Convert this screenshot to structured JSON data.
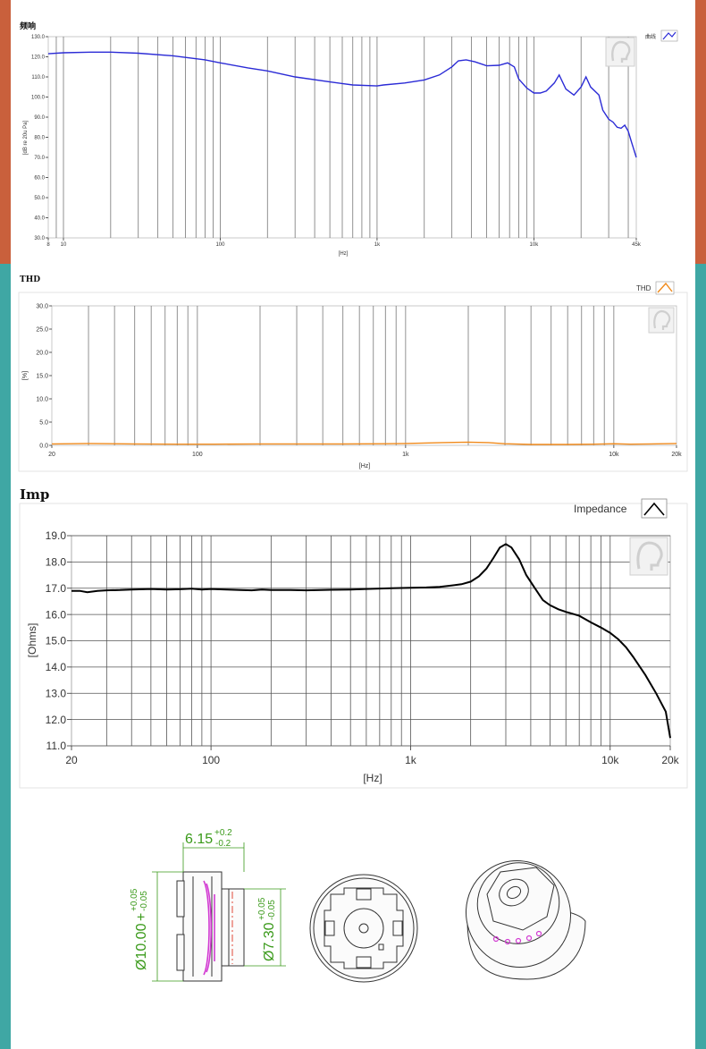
{
  "colors": {
    "left_band_top": "#c9603c",
    "band_bottom": "#3fa7a4",
    "fr_line": "#2b2bd6",
    "thd_line": "#f08a1c",
    "imp_line": "#000000",
    "dimension": "#3a9a1a",
    "coil": "#d23ad2"
  },
  "icons": [
    "person-logo-icon",
    "legend-swatch-icon"
  ],
  "chart_data": [
    {
      "type": "line",
      "title": "频响",
      "xlabel": "[Hz]",
      "ylabel": "[dB re 20u Pa]",
      "xscale": "log",
      "xlim": [
        8,
        45000
      ],
      "ylim": [
        30,
        130
      ],
      "xtick_labels": [
        "8",
        "10",
        "100",
        "1k",
        "10k",
        "45k"
      ],
      "xtick_values": [
        8,
        10,
        100,
        1000,
        10000,
        45000
      ],
      "ytick_values": [
        30,
        40,
        50,
        60,
        70,
        80,
        90,
        100,
        110,
        120,
        130
      ],
      "ytick_labels": [
        "30.0",
        "40.0",
        "50.0",
        "60.0",
        "70.0",
        "80.0",
        "90.0",
        "100.0",
        "110.0",
        "120.0",
        "130.0"
      ],
      "grid": "vertical",
      "legend": "top-right",
      "series": [
        {
          "name": "曲线",
          "points": [
            [
              8,
              121.5
            ],
            [
              10,
              122
            ],
            [
              15,
              122.3
            ],
            [
              20,
              122.3
            ],
            [
              30,
              121.8
            ],
            [
              50,
              120.5
            ],
            [
              80,
              118.5
            ],
            [
              100,
              117
            ],
            [
              150,
              114.5
            ],
            [
              200,
              113
            ],
            [
              300,
              110
            ],
            [
              500,
              107.5
            ],
            [
              700,
              106
            ],
            [
              1000,
              105.5
            ],
            [
              1100,
              106
            ],
            [
              1500,
              107
            ],
            [
              2000,
              108.5
            ],
            [
              2500,
              111
            ],
            [
              3000,
              115
            ],
            [
              3300,
              118
            ],
            [
              3700,
              118.5
            ],
            [
              4200,
              117.5
            ],
            [
              5000,
              115.5
            ],
            [
              6000,
              115.8
            ],
            [
              6800,
              117
            ],
            [
              7500,
              115
            ],
            [
              8000,
              109
            ],
            [
              9000,
              104.5
            ],
            [
              10000,
              102
            ],
            [
              11000,
              102
            ],
            [
              12000,
              103
            ],
            [
              13500,
              107
            ],
            [
              14500,
              111
            ],
            [
              16000,
              104
            ],
            [
              18000,
              101
            ],
            [
              20000,
              105
            ],
            [
              21500,
              110
            ],
            [
              23000,
              105
            ],
            [
              26000,
              101
            ],
            [
              27500,
              93.5
            ],
            [
              30000,
              89
            ],
            [
              32000,
              87.5
            ],
            [
              34000,
              85
            ],
            [
              36000,
              84.5
            ],
            [
              38000,
              86
            ],
            [
              40000,
              83
            ],
            [
              42000,
              77.5
            ],
            [
              43000,
              75
            ],
            [
              45000,
              70
            ]
          ]
        }
      ]
    },
    {
      "type": "line",
      "title": "THD",
      "xlabel": "[Hz]",
      "ylabel": "[%]",
      "xscale": "log",
      "xlim": [
        20,
        20000
      ],
      "ylim": [
        0,
        30
      ],
      "xtick_labels": [
        "20",
        "100",
        "1k",
        "10k",
        "20k"
      ],
      "xtick_values": [
        20,
        100,
        1000,
        10000,
        20000
      ],
      "ytick_values": [
        0,
        5,
        10,
        15,
        20,
        25,
        30
      ],
      "ytick_labels": [
        "0.0",
        "5.0",
        "10.0",
        "15.0",
        "20.0",
        "25.0",
        "30.0"
      ],
      "grid": "vertical",
      "legend": "top-right",
      "series": [
        {
          "name": "THD",
          "points": [
            [
              20,
              0.3
            ],
            [
              30,
              0.4
            ],
            [
              50,
              0.3
            ],
            [
              80,
              0.25
            ],
            [
              120,
              0.25
            ],
            [
              200,
              0.3
            ],
            [
              300,
              0.3
            ],
            [
              500,
              0.3
            ],
            [
              800,
              0.35
            ],
            [
              1000,
              0.4
            ],
            [
              1500,
              0.6
            ],
            [
              2000,
              0.7
            ],
            [
              2500,
              0.6
            ],
            [
              3000,
              0.35
            ],
            [
              4000,
              0.2
            ],
            [
              6000,
              0.2
            ],
            [
              8000,
              0.25
            ],
            [
              10000,
              0.35
            ],
            [
              12000,
              0.25
            ],
            [
              15000,
              0.3
            ],
            [
              20000,
              0.4
            ]
          ]
        }
      ]
    },
    {
      "type": "line",
      "title": "Imp",
      "xlabel": "[Hz]",
      "ylabel": "[Ohms]",
      "xscale": "log",
      "xlim": [
        20,
        20000
      ],
      "ylim": [
        11,
        19
      ],
      "xtick_labels": [
        "20",
        "100",
        "1k",
        "10k",
        "20k"
      ],
      "xtick_values": [
        20,
        100,
        1000,
        10000,
        20000
      ],
      "ytick_values": [
        11,
        12,
        13,
        14,
        15,
        16,
        17,
        18,
        19
      ],
      "ytick_labels": [
        "11.0",
        "12.0",
        "13.0",
        "14.0",
        "15.0",
        "16.0",
        "17.0",
        "18.0",
        "19.0"
      ],
      "grid": "both",
      "legend": "top-right",
      "series": [
        {
          "name": "Impedance",
          "points": [
            [
              20,
              16.9
            ],
            [
              22,
              16.9
            ],
            [
              24,
              16.85
            ],
            [
              27,
              16.9
            ],
            [
              30,
              16.92
            ],
            [
              35,
              16.93
            ],
            [
              40,
              16.95
            ],
            [
              50,
              16.97
            ],
            [
              60,
              16.95
            ],
            [
              70,
              16.96
            ],
            [
              80,
              16.98
            ],
            [
              90,
              16.95
            ],
            [
              100,
              16.97
            ],
            [
              120,
              16.95
            ],
            [
              140,
              16.93
            ],
            [
              160,
              16.92
            ],
            [
              180,
              16.95
            ],
            [
              200,
              16.93
            ],
            [
              250,
              16.93
            ],
            [
              300,
              16.92
            ],
            [
              400,
              16.94
            ],
            [
              500,
              16.95
            ],
            [
              600,
              16.97
            ],
            [
              800,
              17.0
            ],
            [
              1000,
              17.02
            ],
            [
              1200,
              17.03
            ],
            [
              1400,
              17.05
            ],
            [
              1600,
              17.1
            ],
            [
              1800,
              17.15
            ],
            [
              2000,
              17.25
            ],
            [
              2200,
              17.45
            ],
            [
              2400,
              17.75
            ],
            [
              2600,
              18.15
            ],
            [
              2800,
              18.55
            ],
            [
              3000,
              18.68
            ],
            [
              3200,
              18.55
            ],
            [
              3500,
              18.1
            ],
            [
              3800,
              17.5
            ],
            [
              4200,
              17.0
            ],
            [
              4600,
              16.55
            ],
            [
              5000,
              16.35
            ],
            [
              5500,
              16.2
            ],
            [
              6000,
              16.1
            ],
            [
              7000,
              15.95
            ],
            [
              8000,
              15.7
            ],
            [
              9000,
              15.5
            ],
            [
              10000,
              15.3
            ],
            [
              11000,
              15.05
            ],
            [
              12000,
              14.75
            ],
            [
              13000,
              14.4
            ],
            [
              15000,
              13.7
            ],
            [
              17000,
              13.0
            ],
            [
              19000,
              12.3
            ],
            [
              20000,
              11.3
            ]
          ]
        }
      ]
    }
  ],
  "dimensions": {
    "width": "6.15",
    "width_tol_plus": "+0.2",
    "width_tol_minus": "-0.2",
    "outer_diameter": "Ø10.00",
    "outer_tol_plus": "+0.05",
    "outer_tol_minus": "-0.05",
    "inner_diameter": "Ø7.30",
    "inner_tol_plus": "+0.05",
    "inner_tol_minus": "-0.05"
  }
}
